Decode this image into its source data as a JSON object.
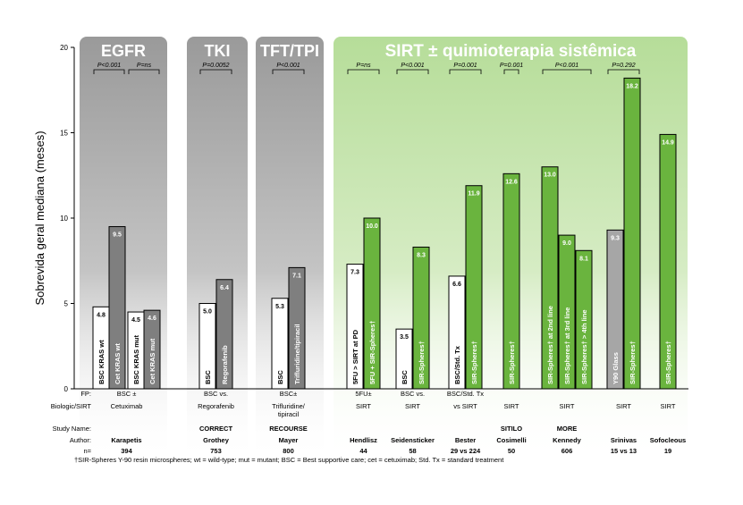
{
  "chart_data": {
    "type": "bar",
    "ylabel": "Sobrevida geral mediana (meses)",
    "ylim": [
      0,
      20
    ],
    "yticks": [
      0,
      5,
      10,
      15,
      20
    ],
    "colors": {
      "bsc": "#ffffff",
      "egfr_tx": "#7f7f7f",
      "sirt": "#6ab43e",
      "y90glass": "#a6a6a6",
      "egfr_group": "#9a9a9a",
      "sirt_group": "#b6dd99",
      "sirt_group_title": "#ffffff"
    },
    "groups": [
      {
        "title": "EGFR",
        "theme": "grey",
        "tests": [
          {
            "label": "P<0.001",
            "from": 0,
            "to": 1
          },
          {
            "label": "P=ns",
            "from": 2,
            "to": 3
          }
        ]
      },
      {
        "title": "TKI",
        "theme": "grey",
        "tests": [
          {
            "label": "P=0.0052",
            "from": 4,
            "to": 5
          }
        ]
      },
      {
        "title": "TFT/TPI",
        "theme": "grey",
        "tests": [
          {
            "label": "P<0.001",
            "from": 6,
            "to": 7
          }
        ]
      },
      {
        "title": "SIRT ± quimioterapia sistêmica",
        "theme": "green",
        "tests": [
          {
            "label": "P=ns",
            "from": 8,
            "to": 9
          },
          {
            "label": "P<0.001",
            "from": 10,
            "to": 11
          },
          {
            "label": "P=0.001",
            "from": 12,
            "to": 13
          },
          {
            "label": "P=0.001",
            "from": 14,
            "to": 14
          },
          {
            "label": "P<0.001",
            "from": 15,
            "to": 17
          },
          {
            "label": "P=0.292",
            "from": 18,
            "to": 19
          }
        ]
      }
    ],
    "bars": [
      {
        "label": "BSC KRAS wt",
        "value": 4.8,
        "value_label": "4.8",
        "color": "bsc"
      },
      {
        "label": "Cet KRAS wt",
        "value": 9.5,
        "value_label": "9.5",
        "color": "egfr_tx"
      },
      {
        "label": "BSC KRAS mut",
        "value": 4.5,
        "value_label": "4.5",
        "color": "bsc"
      },
      {
        "label": "Cet KRAS mut",
        "value": 4.6,
        "value_label": "4.6",
        "color": "egfr_tx"
      },
      {
        "label": "BSC",
        "value": 5.0,
        "value_label": "5.0",
        "color": "bsc"
      },
      {
        "label": "Regorafenib",
        "value": 6.4,
        "value_label": "6.4",
        "color": "egfr_tx"
      },
      {
        "label": "BSC",
        "value": 5.3,
        "value_label": "5.3",
        "color": "bsc"
      },
      {
        "label": "Trifluridine/tipiracil",
        "value": 7.1,
        "value_label": "7.1",
        "color": "egfr_tx"
      },
      {
        "label": "5FU > SIRT at PD",
        "value": 7.3,
        "value_label": "7.3",
        "color": "bsc"
      },
      {
        "label": "5FU + SIR-Spheres†",
        "value": 10.0,
        "value_label": "10.0",
        "color": "sirt"
      },
      {
        "label": "BSC",
        "value": 3.5,
        "value_label": "3.5",
        "color": "bsc"
      },
      {
        "label": "SIR-Spheres†",
        "value": 8.3,
        "value_label": "8.3",
        "color": "sirt"
      },
      {
        "label": "BSC/Std. Tx",
        "value": 6.6,
        "value_label": "6.6",
        "color": "bsc"
      },
      {
        "label": "SIR-Spheres†",
        "value": 11.9,
        "value_label": "11.9",
        "color": "sirt"
      },
      {
        "label": "SIR-Spheres†",
        "value": 12.6,
        "value_label": "12.6",
        "color": "sirt"
      },
      {
        "label": "SIR-Spheres† at 2nd line",
        "value": 13.0,
        "value_label": "13.0",
        "color": "sirt"
      },
      {
        "label": "SIR-Spheres† at 3rd line",
        "value": 9.0,
        "value_label": "9.0",
        "color": "sirt"
      },
      {
        "label": "SIR-Spheres† > 4th line",
        "value": 8.1,
        "value_label": "8.1",
        "color": "sirt"
      },
      {
        "label": "Y90 Glass",
        "value": 9.3,
        "value_label": "9.3",
        "color": "y90glass"
      },
      {
        "label": "SIR-Spheres†",
        "value": 18.2,
        "value_label": "18.2",
        "color": "sirt"
      },
      {
        "label": "SIR-Spheres†",
        "value": 14.9,
        "value_label": "14.9",
        "color": "sirt"
      }
    ],
    "table": {
      "row_labels": [
        "FP:",
        "Biologic/SIRT",
        "Study Name:",
        "Author:",
        "n="
      ],
      "columns": [
        {
          "from": 0,
          "to": 3,
          "fp": "BSC ±",
          "bio": "Cetuximab",
          "study": "",
          "author": "Karapetis",
          "n": "394"
        },
        {
          "from": 4,
          "to": 5,
          "fp": "BSC vs.",
          "bio": "Regorafenib",
          "study": "CORRECT",
          "author": "Grothey",
          "n": "753"
        },
        {
          "from": 6,
          "to": 7,
          "fp": "BSC±",
          "bio": "Trifluridine/ tipiracil",
          "study": "RECOURSE",
          "author": "Mayer",
          "n": "800"
        },
        {
          "from": 8,
          "to": 9,
          "fp": "5FU±",
          "bio": "SIRT",
          "study": "",
          "author": "Hendlisz",
          "n": "44"
        },
        {
          "from": 10,
          "to": 11,
          "fp": "BSC vs.",
          "bio": "SIRT",
          "study": "",
          "author": "Seidensticker",
          "n": "58"
        },
        {
          "from": 12,
          "to": 13,
          "fp": "BSC/Std. Tx",
          "bio": "vs SIRT",
          "study": "",
          "author": "Bester",
          "n": "29 vs 224"
        },
        {
          "from": 14,
          "to": 14,
          "fp": "",
          "bio": "SIRT",
          "study": "SITILO",
          "author": "Cosimelli",
          "n": "50"
        },
        {
          "from": 15,
          "to": 17,
          "fp": "",
          "bio": "SIRT",
          "study": "MORE",
          "author": "Kennedy",
          "n": "606"
        },
        {
          "from": 18,
          "to": 19,
          "fp": "",
          "bio": "SIRT",
          "study": "",
          "author": "Srinivas",
          "n": "15 vs 13"
        },
        {
          "from": 20,
          "to": 20,
          "fp": "",
          "bio": "SIRT",
          "study": "",
          "author": "Sofocleous",
          "n": "19"
        }
      ]
    },
    "footnote": "†SIR-Spheres Y-90 resin microspheres; wt = wild-type; mut = mutant; BSC = Best supportive care; cet = cetuximab; Std. Tx = standard treatment"
  }
}
